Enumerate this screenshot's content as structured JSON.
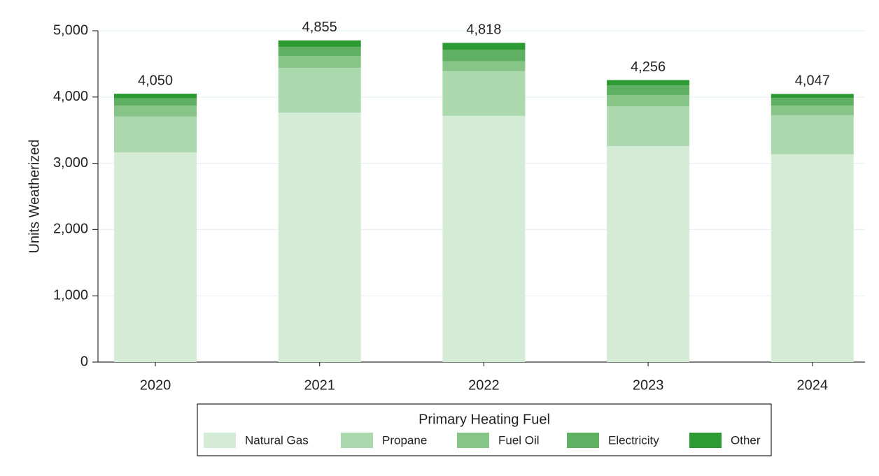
{
  "chart_data": {
    "type": "stacked-bar",
    "y_label": "Units Weatherized",
    "categories": [
      "2020",
      "2021",
      "2022",
      "2023",
      "2024"
    ],
    "series": [
      {
        "name": "Natural Gas",
        "color": "#d4ebd5",
        "values": [
          3165,
          3765,
          3715,
          3260,
          3135
        ]
      },
      {
        "name": "Propane",
        "color": "#acd8ae",
        "values": [
          540,
          675,
          675,
          600,
          590
        ]
      },
      {
        "name": "Fuel Oil",
        "color": "#86c488",
        "values": [
          165,
          180,
          150,
          170,
          145
        ]
      },
      {
        "name": "Electricity",
        "color": "#5fb062",
        "values": [
          110,
          135,
          175,
          145,
          115
        ]
      },
      {
        "name": "Other",
        "color": "#2e9a33",
        "values": [
          70,
          100,
          103,
          81,
          62
        ]
      }
    ],
    "totals": [
      4050,
      4855,
      4818,
      4256,
      4047
    ],
    "total_labels": [
      "4,050",
      "4,855",
      "4,818",
      "4,256",
      "4,047"
    ],
    "ylim": [
      0,
      5000
    ],
    "yticks": [
      0,
      {
        "value": 1000,
        "label": "1,000"
      },
      {
        "value": 2000,
        "label": "2,000"
      },
      {
        "value": 3000,
        "label": "3,000"
      },
      {
        "value": 4000,
        "label": "4,000"
      },
      {
        "value": 5000,
        "label": "5,000"
      }
    ],
    "grid": true,
    "legend_title": "Primary Heating Fuel",
    "legend_position": "bottom"
  }
}
